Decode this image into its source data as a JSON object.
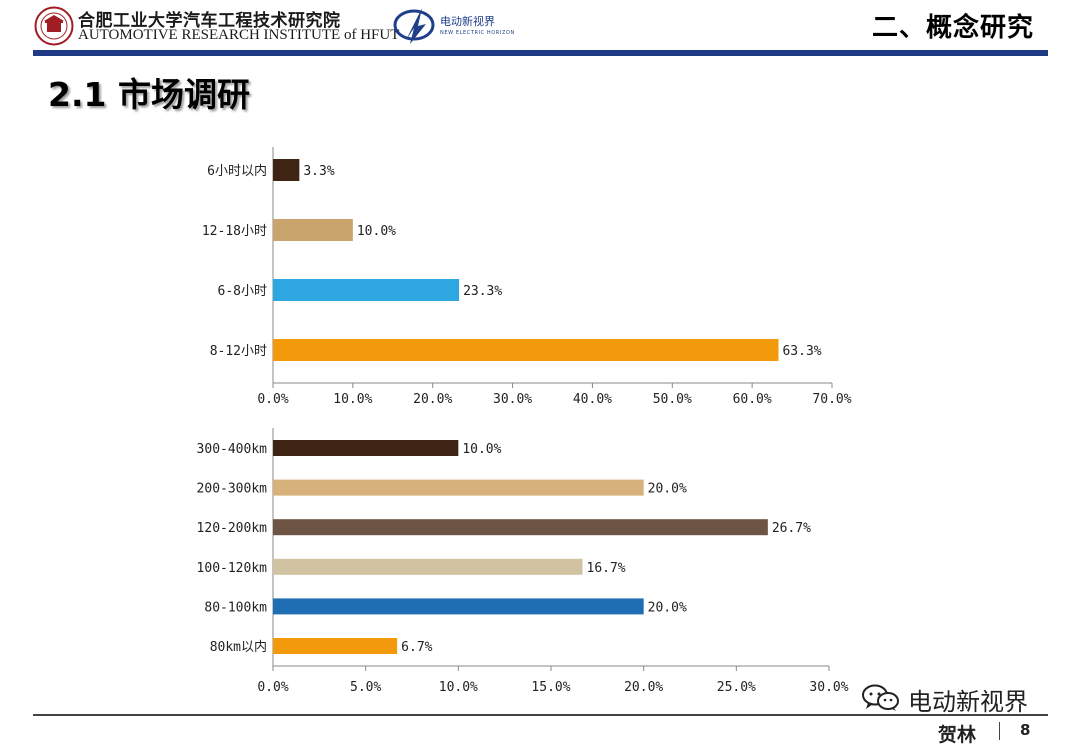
{
  "header": {
    "institute_cn": "合肥工业大学汽车工程技术研究院",
    "institute_en": "AUTOMOTIVE RESEARCH INSTITUTE of HFUT",
    "partner_cn": "电动新视界",
    "partner_en": "NEW ELECTRIC HORIZON",
    "section_title": "二、概念研究",
    "accent_color": "#1f3b86"
  },
  "page_title": "2.1 市场调研",
  "chart_data": [
    {
      "type": "bar",
      "orientation": "horizontal",
      "categories": [
        "6小时以内",
        "12-18小时",
        "6-8小时",
        "8-12小时"
      ],
      "values": [
        3.3,
        10.0,
        23.3,
        63.3
      ],
      "value_labels": [
        "3.3%",
        "10.0%",
        "23.3%",
        "63.3%"
      ],
      "colors": [
        "#3f2415",
        "#c9a46c",
        "#2ea6df",
        "#f29a0c"
      ],
      "xlim": [
        0,
        70
      ],
      "ticks": [
        0,
        10,
        20,
        30,
        40,
        50,
        60,
        70
      ],
      "tick_labels": [
        "0.0%",
        "10.0%",
        "20.0%",
        "30.0%",
        "40.0%",
        "50.0%",
        "60.0%",
        "70.0%"
      ],
      "title": "",
      "xlabel": "",
      "ylabel": "",
      "grid": false,
      "legend": false
    },
    {
      "type": "bar",
      "orientation": "horizontal",
      "categories": [
        "300-400km",
        "200-300km",
        "120-200km",
        "100-120km",
        "80-100km",
        "80km以内"
      ],
      "values": [
        10.0,
        20.0,
        26.7,
        16.7,
        20.0,
        6.7
      ],
      "value_labels": [
        "10.0%",
        "20.0%",
        "26.7%",
        "16.7%",
        "20.0%",
        "6.7%"
      ],
      "colors": [
        "#3f2415",
        "#d6b17c",
        "#6d5444",
        "#d1c2a2",
        "#1f6db3",
        "#f29a0c"
      ],
      "xlim": [
        0,
        30
      ],
      "ticks": [
        0,
        5,
        10,
        15,
        20,
        25,
        30
      ],
      "tick_labels": [
        "0.0%",
        "5.0%",
        "10.0%",
        "15.0%",
        "20.0%",
        "25.0%",
        "30.0%"
      ],
      "title": "",
      "xlabel": "",
      "ylabel": "",
      "grid": false,
      "legend": false
    }
  ],
  "watermark": {
    "icon": "wechat-icon",
    "text": "电动新视界"
  },
  "footer": {
    "author": "贺林",
    "page_number": "8"
  }
}
